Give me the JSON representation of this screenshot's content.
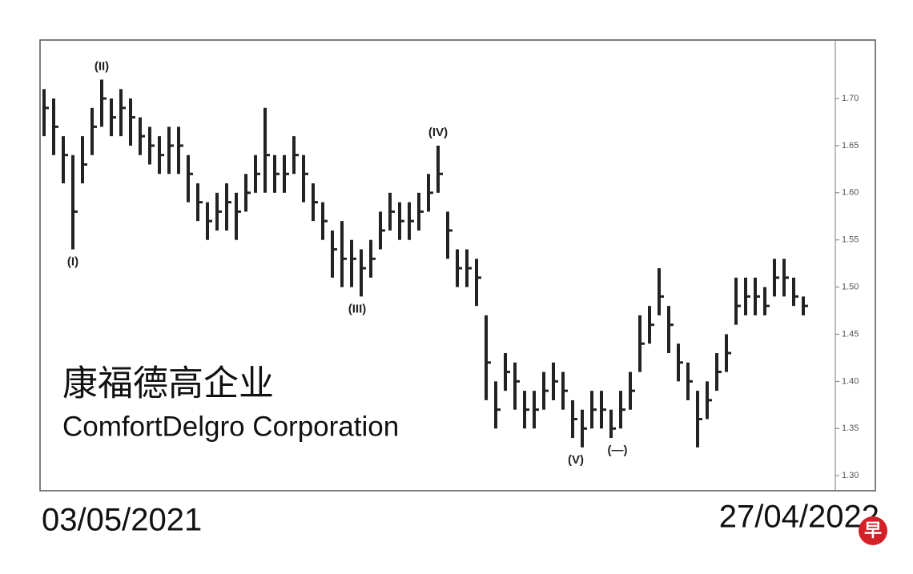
{
  "chart_data": {
    "type": "ohlc",
    "title": "康福德高企业",
    "subtitle": "ComfortDelgro Corporation",
    "date_labels": [
      "03/05/2021",
      "27/04/2022"
    ],
    "logo": "早",
    "color": "#222222",
    "ylim": [
      1.284,
      1.762
    ],
    "yticks": [
      {
        "value": 1.3,
        "label": "1.30"
      },
      {
        "value": 1.35,
        "label": "1.35"
      },
      {
        "value": 1.4,
        "label": "1.40"
      },
      {
        "value": 1.45,
        "label": "1.45"
      },
      {
        "value": 1.5,
        "label": "1.50"
      },
      {
        "value": 1.55,
        "label": "1.55"
      },
      {
        "value": 1.6,
        "label": "1.60"
      },
      {
        "value": 1.65,
        "label": "1.65"
      },
      {
        "value": 1.7,
        "label": "1.70"
      }
    ],
    "annotations": [
      "(I)",
      "(II)",
      "(III)",
      "(IV)",
      "(V)",
      "(—)"
    ],
    "high": [
      1.71,
      1.7,
      1.66,
      1.64,
      1.66,
      1.69,
      1.72,
      1.7,
      1.71,
      1.7,
      1.68,
      1.67,
      1.66,
      1.67,
      1.67,
      1.64,
      1.61,
      1.59,
      1.6,
      1.61,
      1.6,
      1.62,
      1.64,
      1.69,
      1.64,
      1.64,
      1.66,
      1.64,
      1.61,
      1.59,
      1.56,
      1.57,
      1.55,
      1.54,
      1.55,
      1.58,
      1.6,
      1.59,
      1.59,
      1.6,
      1.62,
      1.65,
      1.58,
      1.54,
      1.54,
      1.53,
      1.47,
      1.4,
      1.43,
      1.42,
      1.39,
      1.39,
      1.41,
      1.42,
      1.41,
      1.38,
      1.37,
      1.39,
      1.39,
      1.37,
      1.39,
      1.41,
      1.47,
      1.48,
      1.52,
      1.48,
      1.44,
      1.42,
      1.39,
      1.4,
      1.43,
      1.45,
      1.51,
      1.51,
      1.51,
      1.5,
      1.53,
      1.53,
      1.51,
      1.49
    ],
    "low": [
      1.66,
      1.64,
      1.61,
      1.54,
      1.61,
      1.64,
      1.67,
      1.66,
      1.66,
      1.65,
      1.64,
      1.63,
      1.62,
      1.62,
      1.62,
      1.59,
      1.57,
      1.55,
      1.56,
      1.56,
      1.55,
      1.58,
      1.6,
      1.6,
      1.6,
      1.6,
      1.62,
      1.59,
      1.57,
      1.55,
      1.51,
      1.5,
      1.5,
      1.49,
      1.51,
      1.54,
      1.56,
      1.55,
      1.55,
      1.56,
      1.58,
      1.6,
      1.53,
      1.5,
      1.5,
      1.48,
      1.38,
      1.35,
      1.39,
      1.37,
      1.35,
      1.35,
      1.37,
      1.38,
      1.37,
      1.34,
      1.33,
      1.35,
      1.35,
      1.34,
      1.35,
      1.37,
      1.41,
      1.44,
      1.47,
      1.43,
      1.4,
      1.38,
      1.33,
      1.36,
      1.39,
      1.41,
      1.46,
      1.47,
      1.47,
      1.47,
      1.49,
      1.49,
      1.48,
      1.47
    ],
    "close": [
      1.69,
      1.67,
      1.64,
      1.58,
      1.63,
      1.67,
      1.7,
      1.68,
      1.69,
      1.68,
      1.66,
      1.65,
      1.64,
      1.65,
      1.65,
      1.62,
      1.59,
      1.57,
      1.58,
      1.59,
      1.58,
      1.6,
      1.62,
      1.64,
      1.62,
      1.62,
      1.64,
      1.62,
      1.59,
      1.57,
      1.54,
      1.53,
      1.53,
      1.52,
      1.53,
      1.56,
      1.58,
      1.57,
      1.57,
      1.58,
      1.6,
      1.62,
      1.56,
      1.52,
      1.52,
      1.51,
      1.42,
      1.37,
      1.41,
      1.4,
      1.37,
      1.37,
      1.39,
      1.4,
      1.39,
      1.36,
      1.35,
      1.37,
      1.37,
      1.35,
      1.37,
      1.39,
      1.44,
      1.46,
      1.49,
      1.46,
      1.42,
      1.4,
      1.36,
      1.38,
      1.41,
      1.43,
      1.48,
      1.49,
      1.49,
      1.48,
      1.51,
      1.51,
      1.49,
      1.48
    ]
  }
}
